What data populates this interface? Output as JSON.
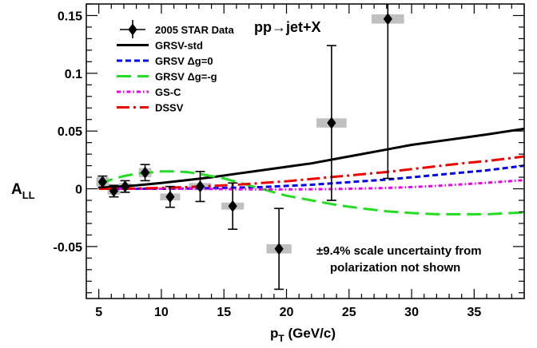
{
  "chart_data": {
    "type": "scatter",
    "title": "pp→jet+X",
    "xlabel": "p_T (GeV/c)",
    "xlabel_main": "p",
    "xlabel_sub": "T",
    "xlabel_unit": " (GeV/c)",
    "ylabel": "A_LL",
    "ylabel_main": "A",
    "ylabel_sub": "LL",
    "xlim": [
      4,
      39
    ],
    "ylim": [
      -0.095,
      0.16
    ],
    "xticks": [
      5,
      10,
      15,
      20,
      25,
      30,
      35
    ],
    "yticks": [
      -0.05,
      0,
      0.05,
      0.1,
      0.15
    ],
    "ytick_labels": [
      "-0.05",
      "0",
      "0.05",
      "0.1",
      "0.15"
    ],
    "grid": false,
    "legend_position": "top-left",
    "annotation": [
      "±9.4% scale uncertainty from",
      "polarization not shown"
    ],
    "data_series": {
      "name": "2005 STAR Data",
      "color": "#000000",
      "marker": "diamond",
      "points": [
        {
          "x": 5.3,
          "y": 0.006,
          "err": 0.005,
          "sys_halfwidth_x": 0.5,
          "sys_halfheight_y": 0.004
        },
        {
          "x": 6.2,
          "y": -0.002,
          "err": 0.005,
          "sys_halfwidth_x": 0.5,
          "sys_halfheight_y": 0.003
        },
        {
          "x": 7.1,
          "y": 0.002,
          "err": 0.005,
          "sys_halfwidth_x": 0.5,
          "sys_halfheight_y": 0.003
        },
        {
          "x": 8.7,
          "y": 0.014,
          "err": 0.007,
          "sys_halfwidth_x": 0.5,
          "sys_halfheight_y": 0.004
        },
        {
          "x": 10.7,
          "y": -0.007,
          "err": 0.009,
          "sys_halfwidth_x": 0.8,
          "sys_halfheight_y": 0.003
        },
        {
          "x": 13.1,
          "y": 0.002,
          "err": 0.013,
          "sys_halfwidth_x": 0.9,
          "sys_halfheight_y": 0.003
        },
        {
          "x": 15.7,
          "y": -0.015,
          "err": 0.02,
          "sys_halfwidth_x": 0.9,
          "sys_halfheight_y": 0.003
        },
        {
          "x": 19.4,
          "y": -0.052,
          "err": 0.035,
          "sys_halfwidth_x": 1.0,
          "sys_halfheight_y": 0.004
        },
        {
          "x": 23.6,
          "y": 0.057,
          "err": 0.067,
          "sys_halfwidth_x": 1.2,
          "sys_halfheight_y": 0.004
        },
        {
          "x": 28.1,
          "y": 0.147,
          "err": 0.138,
          "sys_halfwidth_x": 1.3,
          "sys_halfheight_y": 0.004
        }
      ]
    },
    "curves": [
      {
        "name": "GRSV-std",
        "color": "#000000",
        "dash": "solid",
        "x": [
          5,
          6,
          8,
          10,
          12,
          14,
          16,
          18,
          20,
          22,
          24,
          26,
          28,
          30,
          32,
          34,
          36,
          39
        ],
        "y": [
          0.001,
          0.0015,
          0.003,
          0.005,
          0.0075,
          0.01,
          0.013,
          0.016,
          0.019,
          0.022,
          0.026,
          0.03,
          0.034,
          0.038,
          0.041,
          0.044,
          0.047,
          0.052
        ]
      },
      {
        "name": "GRSV Δg=0",
        "color": "#0000ee",
        "dash": "dashed",
        "x": [
          5,
          8,
          10,
          12,
          14,
          16,
          18,
          20,
          22,
          24,
          26,
          28,
          30,
          32,
          34,
          36,
          39
        ],
        "y": [
          0.0,
          0.0,
          0.0,
          0.0002,
          0.0005,
          0.001,
          0.0015,
          0.0025,
          0.0035,
          0.005,
          0.0065,
          0.008,
          0.01,
          0.012,
          0.014,
          0.016,
          0.02
        ]
      },
      {
        "name": "GRSV Δg=-g",
        "color": "#22dd22",
        "dash": "longdash",
        "x": [
          5,
          6,
          7,
          8,
          9,
          10,
          11,
          12,
          13,
          14,
          15,
          16,
          17,
          18,
          19,
          20,
          22,
          24,
          26,
          28,
          30,
          32,
          34,
          36,
          38,
          39
        ],
        "y": [
          0.004,
          0.008,
          0.011,
          0.013,
          0.014,
          0.015,
          0.015,
          0.0145,
          0.013,
          0.011,
          0.009,
          0.006,
          0.003,
          0.0,
          -0.003,
          -0.006,
          -0.01,
          -0.014,
          -0.017,
          -0.0195,
          -0.021,
          -0.022,
          -0.022,
          -0.022,
          -0.021,
          -0.0205
        ]
      },
      {
        "name": "GS-C",
        "color": "#ee00ee",
        "dash": "dashdot",
        "x": [
          5,
          8,
          10,
          12,
          14,
          16,
          18,
          20,
          22,
          24,
          26,
          28,
          30,
          32,
          34,
          36,
          39
        ],
        "y": [
          0.0,
          0.0,
          0.0,
          0.0,
          -0.0002,
          -0.0004,
          -0.0005,
          -0.0005,
          -0.0004,
          -0.0002,
          0.0002,
          0.0007,
          0.0015,
          0.0025,
          0.0038,
          0.0052,
          0.0075
        ]
      },
      {
        "name": "DSSV",
        "color": "#ee0000",
        "dash": "longdashdot",
        "x": [
          5,
          8,
          10,
          12,
          14,
          16,
          18,
          20,
          22,
          24,
          26,
          28,
          30,
          32,
          34,
          36,
          39
        ],
        "y": [
          0.0,
          0.0003,
          0.0008,
          0.0015,
          0.0025,
          0.0035,
          0.005,
          0.0065,
          0.0085,
          0.0105,
          0.0125,
          0.0145,
          0.017,
          0.0195,
          0.022,
          0.024,
          0.028
        ]
      }
    ],
    "legend": [
      {
        "label": "2005 STAR Data",
        "kind": "marker",
        "color": "#000000",
        "dash": "solid"
      },
      {
        "label": "GRSV-std",
        "kind": "line",
        "color": "#000000",
        "dash": "solid"
      },
      {
        "label": "GRSV Δg=0",
        "kind": "line",
        "color": "#0000ee",
        "dash": "dashed"
      },
      {
        "label": "GRSV Δg=-g",
        "kind": "line",
        "color": "#22dd22",
        "dash": "longdash"
      },
      {
        "label": "GS-C",
        "kind": "line",
        "color": "#ee00ee",
        "dash": "dashdot"
      },
      {
        "label": "DSSV",
        "kind": "line",
        "color": "#ee0000",
        "dash": "longdashdot"
      }
    ],
    "sys_box_color": "#c0c0c0"
  }
}
